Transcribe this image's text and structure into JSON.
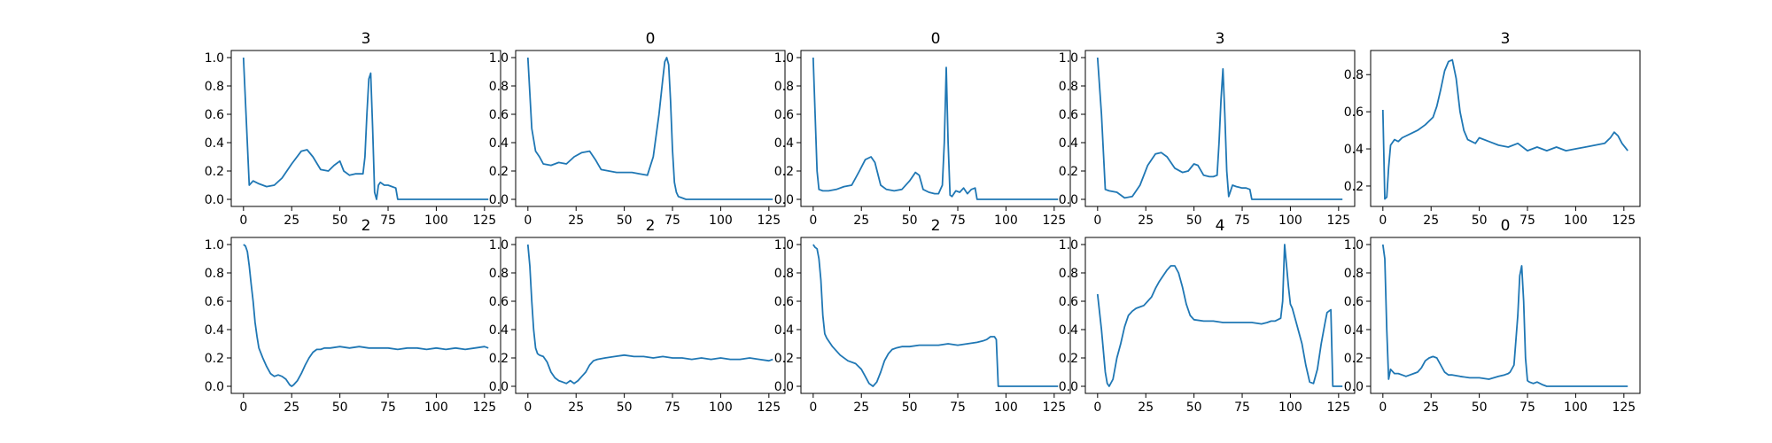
{
  "chart_data": [
    {
      "type": "line",
      "title": "3",
      "xlim": [
        -6.35,
        133.35
      ],
      "ylim": [
        -0.05,
        1.05
      ],
      "xticks": [
        0,
        25,
        50,
        75,
        100,
        125
      ],
      "yticks": [
        0.0,
        0.2,
        0.4,
        0.6,
        0.8,
        1.0
      ],
      "x": [
        0,
        3,
        5,
        8,
        12,
        16,
        20,
        25,
        30,
        33,
        36,
        40,
        44,
        47,
        50,
        52,
        55,
        58,
        60,
        62,
        63,
        64,
        65,
        66,
        67,
        68,
        69,
        70,
        71,
        73,
        75,
        77,
        79,
        80,
        81,
        85,
        90,
        100,
        110,
        120,
        127
      ],
      "values": [
        1.0,
        0.1,
        0.13,
        0.11,
        0.09,
        0.1,
        0.15,
        0.25,
        0.34,
        0.35,
        0.3,
        0.21,
        0.2,
        0.24,
        0.27,
        0.2,
        0.17,
        0.18,
        0.18,
        0.18,
        0.3,
        0.6,
        0.85,
        0.89,
        0.5,
        0.05,
        0.0,
        0.1,
        0.12,
        0.1,
        0.1,
        0.09,
        0.08,
        0.0,
        0.0,
        0.0,
        0.0,
        0.0,
        0.0,
        0.0,
        0.0
      ]
    },
    {
      "type": "line",
      "title": "0",
      "xlim": [
        -6.35,
        133.35
      ],
      "ylim": [
        -0.05,
        1.05
      ],
      "xticks": [
        0,
        25,
        50,
        75,
        100,
        125
      ],
      "yticks": [
        0.0,
        0.2,
        0.4,
        0.6,
        0.8,
        1.0
      ],
      "x": [
        0,
        2,
        4,
        6,
        8,
        12,
        16,
        20,
        24,
        28,
        32,
        35,
        38,
        42,
        46,
        50,
        54,
        58,
        62,
        65,
        68,
        70,
        71,
        72,
        73,
        74,
        75,
        76,
        77,
        78,
        80,
        82,
        85,
        90,
        100,
        110,
        120,
        127
      ],
      "values": [
        1.0,
        0.5,
        0.34,
        0.3,
        0.25,
        0.24,
        0.26,
        0.25,
        0.3,
        0.33,
        0.34,
        0.28,
        0.21,
        0.2,
        0.19,
        0.19,
        0.19,
        0.18,
        0.17,
        0.3,
        0.6,
        0.85,
        0.97,
        1.0,
        0.95,
        0.7,
        0.35,
        0.12,
        0.05,
        0.02,
        0.01,
        0.0,
        0.0,
        0.0,
        0.0,
        0.0,
        0.0,
        0.0
      ]
    },
    {
      "type": "line",
      "title": "0",
      "xlim": [
        -6.35,
        133.35
      ],
      "ylim": [
        -0.05,
        1.05
      ],
      "xticks": [
        0,
        25,
        50,
        75,
        100,
        125
      ],
      "yticks": [
        0.0,
        0.2,
        0.4,
        0.6,
        0.8,
        1.0
      ],
      "x": [
        0,
        1,
        2,
        3,
        5,
        8,
        12,
        16,
        20,
        24,
        27,
        30,
        32,
        35,
        38,
        42,
        46,
        50,
        53,
        55,
        57,
        60,
        63,
        65,
        67,
        68,
        69,
        70,
        71,
        72,
        74,
        76,
        78,
        80,
        82,
        84,
        85,
        90,
        100,
        110,
        120,
        127
      ],
      "values": [
        1.0,
        0.6,
        0.2,
        0.07,
        0.06,
        0.06,
        0.07,
        0.09,
        0.1,
        0.2,
        0.28,
        0.3,
        0.26,
        0.1,
        0.07,
        0.06,
        0.07,
        0.13,
        0.19,
        0.17,
        0.07,
        0.05,
        0.04,
        0.04,
        0.1,
        0.4,
        0.93,
        0.4,
        0.03,
        0.02,
        0.06,
        0.05,
        0.08,
        0.04,
        0.07,
        0.08,
        0.0,
        0.0,
        0.0,
        0.0,
        0.0,
        0.0
      ]
    },
    {
      "type": "line",
      "title": "3",
      "xlim": [
        -6.35,
        133.35
      ],
      "ylim": [
        -0.05,
        1.05
      ],
      "xticks": [
        0,
        25,
        50,
        75,
        100,
        125
      ],
      "yticks": [
        0.0,
        0.2,
        0.4,
        0.6,
        0.8,
        1.0
      ],
      "x": [
        0,
        2,
        4,
        6,
        10,
        14,
        18,
        22,
        26,
        30,
        33,
        36,
        40,
        44,
        47,
        50,
        52,
        55,
        58,
        60,
        62,
        63,
        64,
        65,
        66,
        67,
        68,
        70,
        72,
        75,
        77,
        79,
        80,
        81,
        85,
        90,
        100,
        110,
        120,
        127
      ],
      "values": [
        1.0,
        0.6,
        0.07,
        0.06,
        0.05,
        0.01,
        0.02,
        0.1,
        0.24,
        0.32,
        0.33,
        0.3,
        0.22,
        0.19,
        0.2,
        0.25,
        0.24,
        0.17,
        0.16,
        0.16,
        0.17,
        0.4,
        0.7,
        0.92,
        0.6,
        0.2,
        0.02,
        0.1,
        0.09,
        0.08,
        0.08,
        0.07,
        0.0,
        0.0,
        0.0,
        0.0,
        0.0,
        0.0,
        0.0,
        0.0
      ]
    },
    {
      "type": "line",
      "title": "3",
      "xlim": [
        -6.35,
        133.35
      ],
      "ylim": [
        0.09,
        0.93
      ],
      "xticks": [
        0,
        25,
        50,
        75,
        100,
        125
      ],
      "yticks": [
        0.2,
        0.4,
        0.6,
        0.8
      ],
      "x": [
        0,
        1,
        2,
        3,
        4,
        6,
        8,
        10,
        14,
        18,
        22,
        26,
        28,
        30,
        32,
        34,
        36,
        38,
        40,
        42,
        44,
        46,
        48,
        50,
        55,
        60,
        65,
        70,
        75,
        80,
        85,
        90,
        95,
        100,
        105,
        110,
        115,
        118,
        120,
        122,
        124,
        127
      ],
      "values": [
        0.61,
        0.13,
        0.14,
        0.3,
        0.42,
        0.45,
        0.44,
        0.46,
        0.48,
        0.5,
        0.53,
        0.57,
        0.63,
        0.72,
        0.82,
        0.87,
        0.88,
        0.78,
        0.6,
        0.5,
        0.45,
        0.44,
        0.43,
        0.46,
        0.44,
        0.42,
        0.41,
        0.43,
        0.39,
        0.41,
        0.39,
        0.41,
        0.39,
        0.4,
        0.41,
        0.42,
        0.43,
        0.46,
        0.49,
        0.47,
        0.43,
        0.39
      ]
    },
    {
      "type": "line",
      "title": "2",
      "xlim": [
        -6.35,
        133.35
      ],
      "ylim": [
        -0.05,
        1.05
      ],
      "xticks": [
        0,
        25,
        50,
        75,
        100,
        125
      ],
      "yticks": [
        0.0,
        0.2,
        0.4,
        0.6,
        0.8,
        1.0
      ],
      "x": [
        0,
        1,
        2,
        3,
        4,
        5,
        6,
        7,
        8,
        10,
        12,
        14,
        16,
        18,
        20,
        22,
        24,
        25,
        26,
        28,
        30,
        32,
        34,
        36,
        38,
        40,
        42,
        45,
        50,
        55,
        60,
        65,
        70,
        75,
        80,
        85,
        90,
        95,
        100,
        105,
        110,
        115,
        120,
        125,
        127
      ],
      "values": [
        1.0,
        0.99,
        0.95,
        0.85,
        0.72,
        0.6,
        0.45,
        0.35,
        0.27,
        0.2,
        0.14,
        0.09,
        0.07,
        0.08,
        0.07,
        0.05,
        0.01,
        0.0,
        0.01,
        0.04,
        0.09,
        0.15,
        0.2,
        0.24,
        0.26,
        0.26,
        0.27,
        0.27,
        0.28,
        0.27,
        0.28,
        0.27,
        0.27,
        0.27,
        0.26,
        0.27,
        0.27,
        0.26,
        0.27,
        0.26,
        0.27,
        0.26,
        0.27,
        0.28,
        0.27
      ]
    },
    {
      "type": "line",
      "title": "2",
      "xlim": [
        -6.35,
        133.35
      ],
      "ylim": [
        -0.05,
        1.05
      ],
      "xticks": [
        0,
        25,
        50,
        75,
        100,
        125
      ],
      "yticks": [
        0.0,
        0.2,
        0.4,
        0.6,
        0.8,
        1.0
      ],
      "x": [
        0,
        1,
        2,
        3,
        4,
        5,
        6,
        8,
        10,
        12,
        14,
        16,
        18,
        20,
        22,
        24,
        26,
        28,
        30,
        32,
        34,
        36,
        40,
        45,
        50,
        55,
        60,
        65,
        70,
        75,
        80,
        85,
        90,
        95,
        100,
        105,
        110,
        115,
        120,
        125,
        127
      ],
      "values": [
        1.0,
        0.85,
        0.6,
        0.4,
        0.27,
        0.23,
        0.22,
        0.21,
        0.17,
        0.1,
        0.06,
        0.04,
        0.03,
        0.02,
        0.04,
        0.02,
        0.04,
        0.07,
        0.1,
        0.15,
        0.18,
        0.19,
        0.2,
        0.21,
        0.22,
        0.21,
        0.21,
        0.2,
        0.21,
        0.2,
        0.2,
        0.19,
        0.2,
        0.19,
        0.2,
        0.19,
        0.19,
        0.2,
        0.19,
        0.18,
        0.19
      ]
    },
    {
      "type": "line",
      "title": "2",
      "xlim": [
        -6.35,
        133.35
      ],
      "ylim": [
        -0.05,
        1.05
      ],
      "xticks": [
        0,
        25,
        50,
        75,
        100,
        125
      ],
      "yticks": [
        0.0,
        0.2,
        0.4,
        0.6,
        0.8,
        1.0
      ],
      "x": [
        0,
        1,
        2,
        3,
        4,
        5,
        6,
        7,
        8,
        10,
        14,
        18,
        22,
        25,
        27,
        29,
        31,
        33,
        35,
        37,
        39,
        41,
        43,
        46,
        50,
        55,
        60,
        65,
        70,
        75,
        80,
        85,
        88,
        90,
        92,
        94,
        95,
        96,
        100,
        110,
        120,
        127
      ],
      "values": [
        1.0,
        0.98,
        0.97,
        0.9,
        0.75,
        0.5,
        0.37,
        0.34,
        0.32,
        0.28,
        0.22,
        0.18,
        0.16,
        0.12,
        0.07,
        0.02,
        0.0,
        0.03,
        0.1,
        0.18,
        0.23,
        0.26,
        0.27,
        0.28,
        0.28,
        0.29,
        0.29,
        0.29,
        0.3,
        0.29,
        0.3,
        0.31,
        0.32,
        0.33,
        0.35,
        0.35,
        0.33,
        0.0,
        0.0,
        0.0,
        0.0,
        0.0
      ]
    },
    {
      "type": "line",
      "title": "4",
      "xlim": [
        -6.35,
        133.35
      ],
      "ylim": [
        -0.05,
        1.05
      ],
      "xticks": [
        0,
        25,
        50,
        75,
        100,
        125
      ],
      "yticks": [
        0.0,
        0.2,
        0.4,
        0.6,
        0.8,
        1.0
      ],
      "x": [
        0,
        2,
        4,
        5,
        6,
        8,
        10,
        12,
        14,
        16,
        18,
        20,
        22,
        24,
        26,
        28,
        30,
        32,
        34,
        36,
        38,
        40,
        42,
        44,
        46,
        48,
        50,
        55,
        60,
        65,
        70,
        75,
        80,
        85,
        88,
        90,
        92,
        95,
        96,
        97,
        98,
        99,
        100,
        101,
        103,
        106,
        108,
        110,
        112,
        114,
        116,
        118,
        119,
        120,
        121,
        122,
        127
      ],
      "values": [
        0.65,
        0.4,
        0.1,
        0.02,
        0.0,
        0.05,
        0.2,
        0.3,
        0.42,
        0.5,
        0.53,
        0.55,
        0.56,
        0.57,
        0.6,
        0.63,
        0.69,
        0.74,
        0.78,
        0.82,
        0.85,
        0.85,
        0.8,
        0.7,
        0.58,
        0.5,
        0.47,
        0.46,
        0.46,
        0.45,
        0.45,
        0.45,
        0.45,
        0.44,
        0.45,
        0.46,
        0.46,
        0.48,
        0.6,
        1.0,
        0.85,
        0.7,
        0.58,
        0.55,
        0.45,
        0.3,
        0.15,
        0.03,
        0.02,
        0.12,
        0.3,
        0.45,
        0.52,
        0.53,
        0.54,
        0.0,
        0.0
      ]
    },
    {
      "type": "line",
      "title": "0",
      "xlim": [
        -6.35,
        133.35
      ],
      "ylim": [
        -0.05,
        1.05
      ],
      "xticks": [
        0,
        25,
        50,
        75,
        100,
        125
      ],
      "yticks": [
        0.0,
        0.2,
        0.4,
        0.6,
        0.8,
        1.0
      ],
      "x": [
        0,
        1,
        2,
        3,
        4,
        6,
        8,
        10,
        12,
        14,
        16,
        18,
        20,
        22,
        24,
        26,
        28,
        30,
        32,
        34,
        36,
        40,
        45,
        50,
        55,
        60,
        63,
        65,
        66,
        68,
        70,
        71,
        72,
        73,
        74,
        75,
        76,
        78,
        80,
        83,
        85,
        90,
        100,
        110,
        120,
        127
      ],
      "values": [
        1.0,
        0.9,
        0.4,
        0.05,
        0.12,
        0.09,
        0.09,
        0.08,
        0.07,
        0.08,
        0.09,
        0.1,
        0.13,
        0.18,
        0.2,
        0.21,
        0.2,
        0.15,
        0.1,
        0.08,
        0.08,
        0.07,
        0.06,
        0.06,
        0.05,
        0.07,
        0.08,
        0.09,
        0.1,
        0.15,
        0.5,
        0.78,
        0.85,
        0.6,
        0.2,
        0.04,
        0.03,
        0.02,
        0.03,
        0.01,
        0.0,
        0.0,
        0.0,
        0.0,
        0.0,
        0.0
      ]
    }
  ]
}
